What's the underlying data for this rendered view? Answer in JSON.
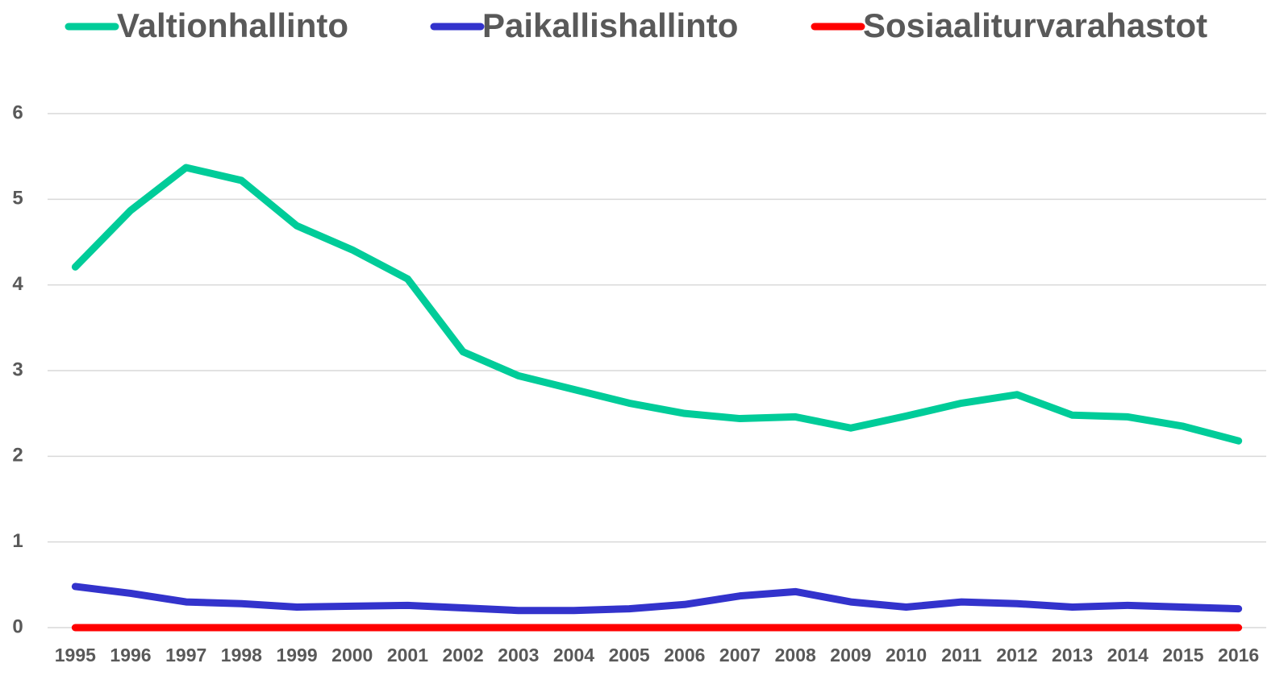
{
  "chart_data": {
    "type": "line",
    "categories": [
      "1995",
      "1996",
      "1997",
      "1998",
      "1999",
      "2000",
      "2001",
      "2002",
      "2003",
      "2004",
      "2005",
      "2006",
      "2007",
      "2008",
      "2009",
      "2010",
      "2011",
      "2012",
      "2013",
      "2014",
      "2015",
      "2016"
    ],
    "series": [
      {
        "name": "Valtionhallinto",
        "color": "#00cc99",
        "values": [
          4.21,
          4.87,
          5.37,
          5.22,
          4.69,
          4.41,
          4.07,
          3.22,
          2.94,
          2.78,
          2.62,
          2.5,
          2.44,
          2.46,
          2.33,
          2.47,
          2.62,
          2.72,
          2.48,
          2.46,
          2.35,
          2.18
        ]
      },
      {
        "name": "Paikallishallinto",
        "color": "#3333cc",
        "values": [
          0.48,
          0.4,
          0.3,
          0.28,
          0.24,
          0.25,
          0.26,
          0.23,
          0.2,
          0.2,
          0.22,
          0.27,
          0.37,
          0.42,
          0.3,
          0.24,
          0.3,
          0.28,
          0.24,
          0.26,
          0.24,
          0.22
        ]
      },
      {
        "name": "Sosiaaliturvarahastot",
        "color": "#ff0000",
        "values": [
          0,
          0,
          0,
          0,
          0,
          0,
          0,
          0,
          0,
          0,
          0,
          0,
          0,
          0,
          0,
          0,
          0,
          0,
          0,
          0,
          0,
          0
        ]
      }
    ],
    "ylim": [
      0,
      6
    ],
    "yticks": [
      0,
      1,
      2,
      3,
      4,
      5,
      6
    ],
    "grid": true,
    "legend": "top"
  }
}
